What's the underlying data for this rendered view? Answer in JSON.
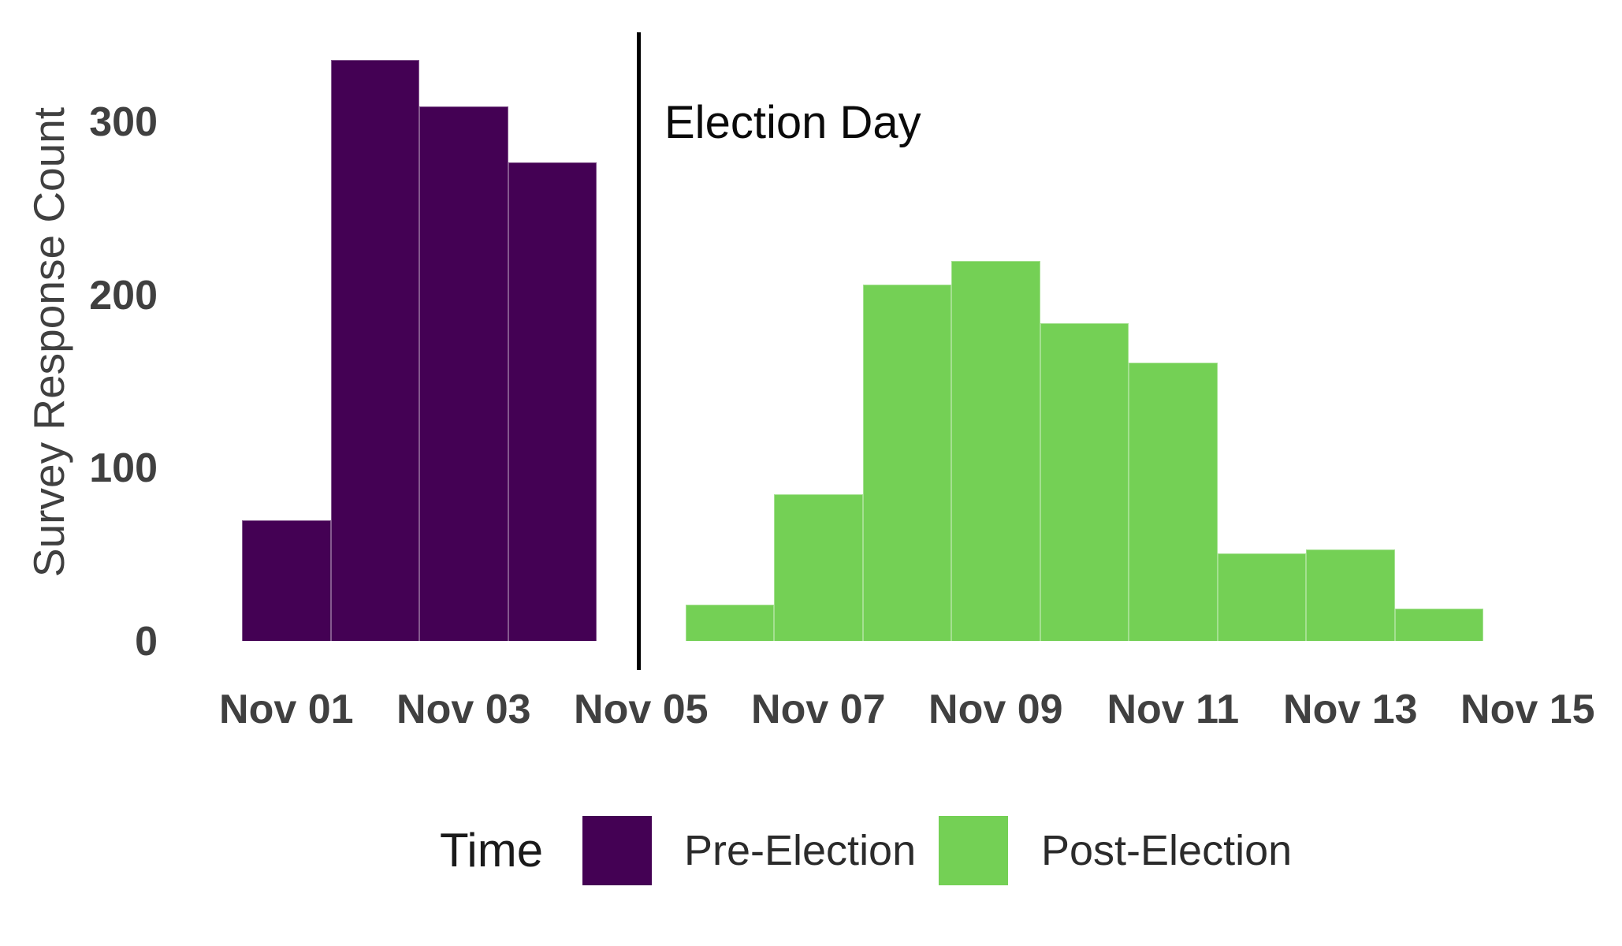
{
  "chart_data": {
    "type": "bar",
    "subtype": "histogram",
    "title": "",
    "xlabel": "",
    "ylabel": "Survey Response Count",
    "x_tick_labels": [
      "Nov 01",
      "Nov 03",
      "Nov 05",
      "Nov 07",
      "Nov 09",
      "Nov 11",
      "Nov 13",
      "Nov 15"
    ],
    "y_ticks": [
      0,
      100,
      200,
      300
    ],
    "ylim": [
      0,
      345
    ],
    "grid": "off",
    "legend_position": "bottom",
    "background_color": "#ffffff",
    "tick_text_color": "#404040",
    "annotation": {
      "label": "Election Day",
      "x": "Nov 05",
      "line_color": "#000000"
    },
    "legend": {
      "title": "Time",
      "entries": [
        "Pre-Election",
        "Post-Election"
      ]
    },
    "series": [
      {
        "name": "Pre-Election",
        "color": "#440154",
        "bins": [
          {
            "date": "Nov 01",
            "count": 70
          },
          {
            "date": "Nov 02",
            "count": 336
          },
          {
            "date": "Nov 03",
            "count": 309
          },
          {
            "date": "Nov 04",
            "count": 277
          }
        ]
      },
      {
        "name": "Post-Election",
        "color": "#74d055",
        "bins": [
          {
            "date": "Nov 06",
            "count": 21
          },
          {
            "date": "Nov 07",
            "count": 85
          },
          {
            "date": "Nov 08",
            "count": 206
          },
          {
            "date": "Nov 09",
            "count": 220
          },
          {
            "date": "Nov 10",
            "count": 184
          },
          {
            "date": "Nov 11",
            "count": 161
          },
          {
            "date": "Nov 12",
            "count": 51
          },
          {
            "date": "Nov 13",
            "count": 53
          },
          {
            "date": "Nov 14",
            "count": 19
          }
        ]
      }
    ]
  }
}
